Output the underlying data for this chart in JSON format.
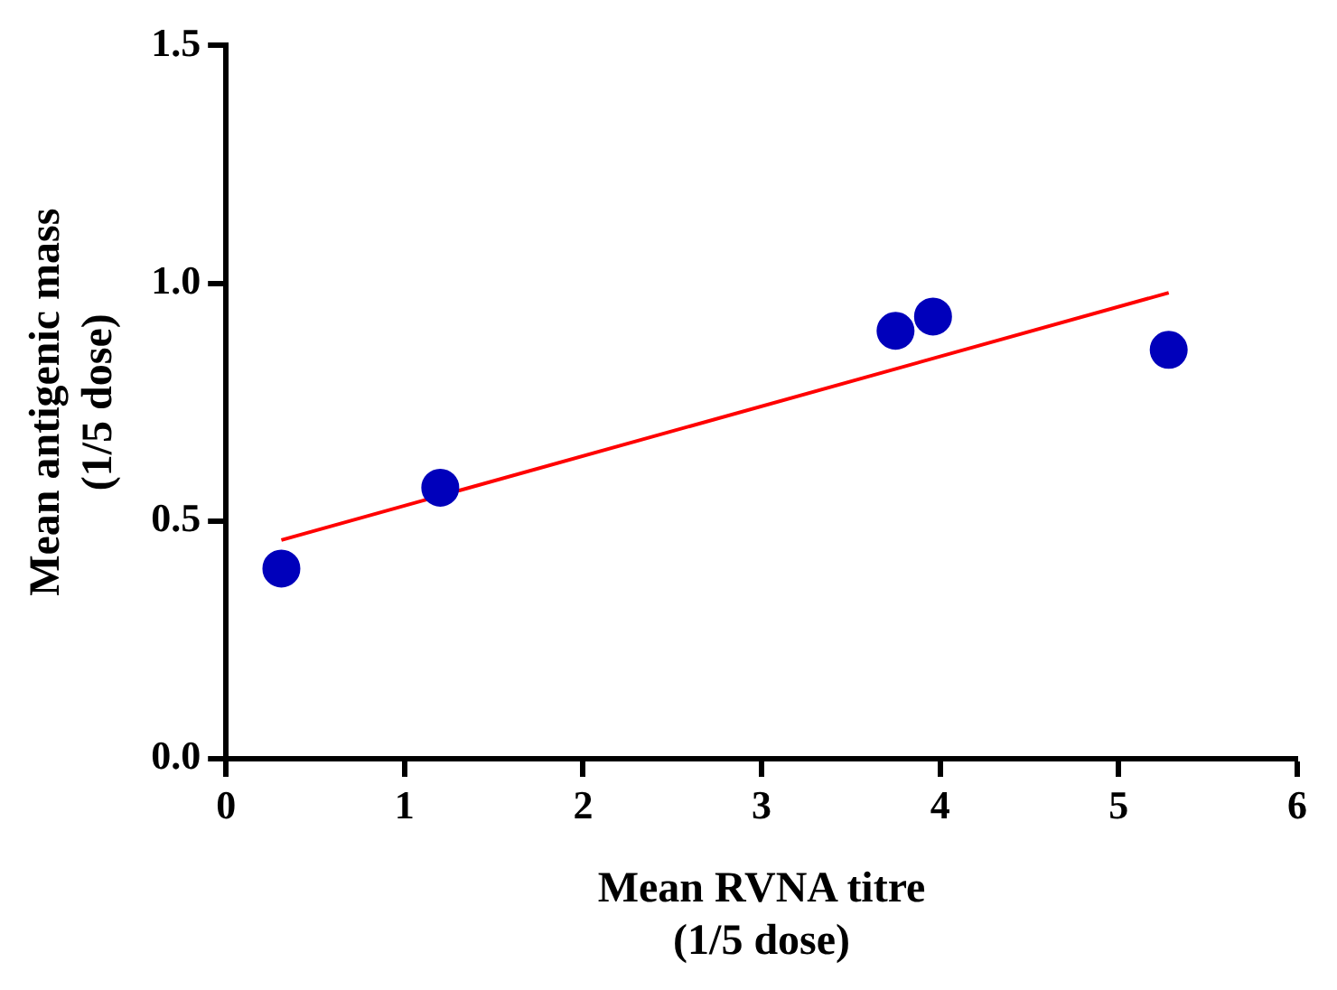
{
  "chart_data": {
    "type": "scatter",
    "xlabel": "Mean RVNA titre\n(1/5 dose)",
    "ylabel": "Mean antigenic mass\n(1/5 dose)",
    "x": [
      0.31,
      1.2,
      3.75,
      3.96,
      5.28
    ],
    "series": [
      {
        "color": "#0000bb",
        "marker": "circle",
        "values": [
          0.4,
          0.57,
          0.9,
          0.93,
          0.86
        ]
      },
      {
        "type": "line",
        "color": "#ff0000",
        "marker": "none",
        "x": [
          0.31,
          5.28
        ],
        "values": [
          0.46,
          0.98
        ]
      }
    ],
    "xlim": [
      0,
      6
    ],
    "xticks": [
      0,
      1,
      2,
      3,
      4,
      5,
      6
    ],
    "ylim": [
      0,
      1.5
    ],
    "yticks": [
      {
        "value": 0,
        "label": "0.0"
      },
      {
        "value": 0.5,
        "label": "0.5"
      },
      {
        "value": 1,
        "label": "1.0"
      },
      {
        "value": 1.5,
        "label": "1.5"
      }
    ],
    "grid": false,
    "legend": false
  }
}
